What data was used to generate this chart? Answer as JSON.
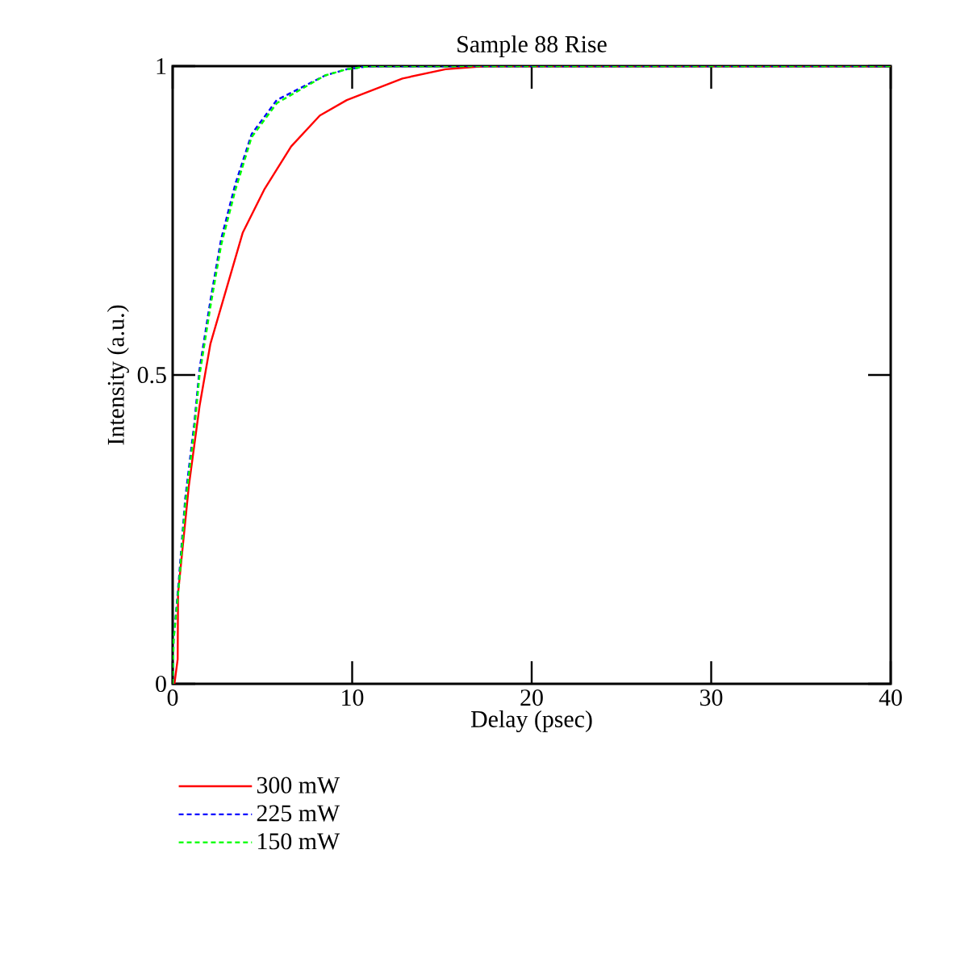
{
  "chart_data": {
    "type": "line",
    "title": "Sample 88 Rise",
    "xlabel": "Delay (psec)",
    "ylabel": "Intensity (a.u.)",
    "xlim": [
      0,
      40
    ],
    "ylim": [
      0,
      1
    ],
    "xticks": [
      0,
      10,
      20,
      30,
      40
    ],
    "yticks": [
      0,
      0.5,
      1
    ],
    "grid": false,
    "legend": "bottom",
    "marker": "none",
    "series": [
      {
        "name": "300 mW",
        "color": "#ff0000",
        "line_style": "solid",
        "x": [
          0,
          0.1,
          0.28,
          0.3,
          0.9,
          1.5,
          2.1,
          3.0,
          3.9,
          5.1,
          6.6,
          8.2,
          9.7,
          12.8,
          15.2,
          17.4,
          40
        ],
        "values": [
          0,
          0.0,
          0.04,
          0.146,
          0.32,
          0.45,
          0.55,
          0.64,
          0.73,
          0.8,
          0.87,
          0.92,
          0.945,
          0.98,
          0.995,
          1,
          1
        ]
      },
      {
        "name": "225 mW",
        "color": "#0000ff",
        "line_style": "dashed",
        "x": [
          0,
          0.05,
          0.35,
          0.7,
          1.2,
          1.5,
          2.1,
          2.7,
          3.5,
          4.4,
          5.8,
          8.5,
          9.7,
          11,
          40
        ],
        "values": [
          0,
          0.07,
          0.17,
          0.3,
          0.42,
          0.51,
          0.62,
          0.72,
          0.81,
          0.89,
          0.945,
          0.985,
          0.995,
          1,
          1
        ]
      },
      {
        "name": "150 mW",
        "color": "#00ff00",
        "line_style": "dashed",
        "x": [
          0,
          0.05,
          0.35,
          0.7,
          1.2,
          1.5,
          2.1,
          2.7,
          3.5,
          4.4,
          5.8,
          8.5,
          9.7,
          11,
          40
        ],
        "values": [
          0,
          0.07,
          0.16,
          0.29,
          0.41,
          0.5,
          0.61,
          0.71,
          0.8,
          0.885,
          0.94,
          0.985,
          0.995,
          1,
          1
        ]
      }
    ]
  }
}
